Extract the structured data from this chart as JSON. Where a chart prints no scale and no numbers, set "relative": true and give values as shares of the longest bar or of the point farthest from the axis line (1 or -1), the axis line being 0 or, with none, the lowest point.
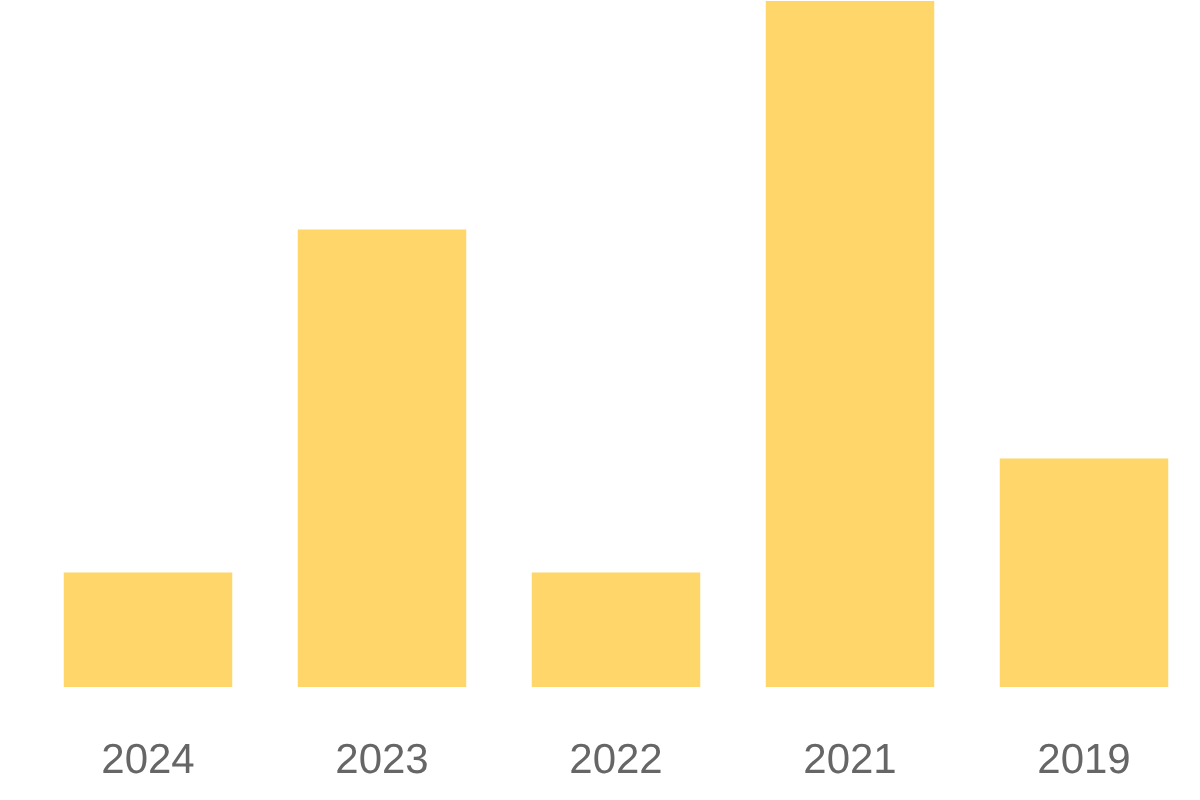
{
  "chart_data": {
    "type": "bar",
    "relative": true,
    "categories": [
      "2024",
      "2023",
      "2022",
      "2021",
      "2019"
    ],
    "values": [
      0.167,
      0.667,
      0.167,
      1,
      0.333
    ],
    "color": "#fed669",
    "grid": false
  }
}
